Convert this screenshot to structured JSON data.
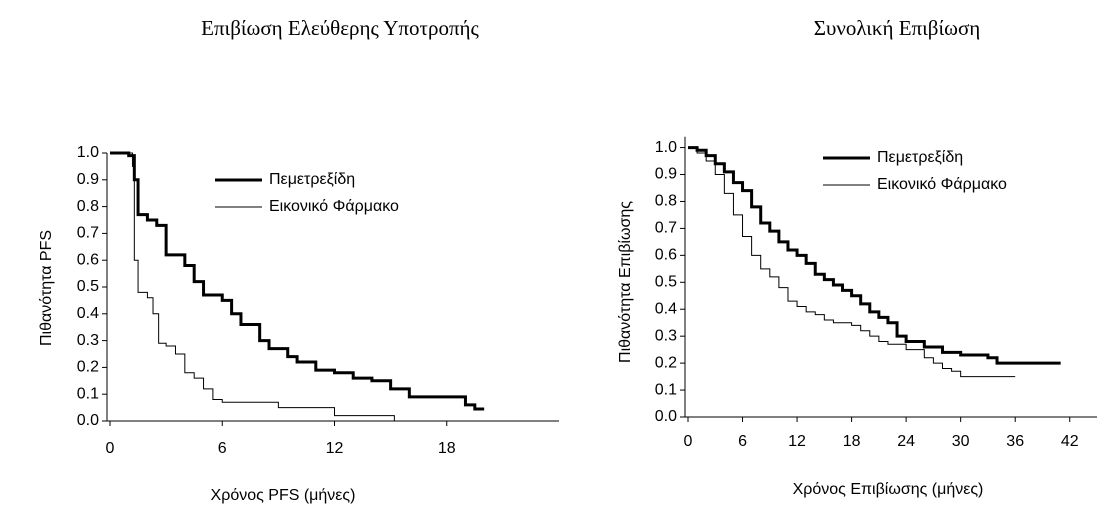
{
  "chart_data": [
    {
      "type": "step",
      "title": "Επιβίωση Ελεύθερης Υποτροπής",
      "x_label": "Χρόνος PFS (μήνες)",
      "y_label": "Πιθανότητα PFS",
      "xlim": [
        0,
        24
      ],
      "xticks": [
        0,
        6,
        12,
        18
      ],
      "ylim": [
        0,
        1
      ],
      "yticks": [
        {
          "value": 0,
          "label": "0.0"
        },
        0.1,
        0.2,
        0.3,
        0.4,
        0.5,
        0.6,
        0.7,
        0.8,
        0.9,
        {
          "value": 1,
          "label": "1.0"
        }
      ],
      "legend": "upper right",
      "series": [
        {
          "name": "Πεμετρεξίδη",
          "color": "#000000",
          "line_width": 3,
          "x": [
            0,
            1,
            1.3,
            1.5,
            2,
            2.5,
            3,
            4,
            4.5,
            5,
            6,
            6.5,
            7,
            8,
            8.5,
            9.5,
            10,
            11,
            12,
            13,
            14,
            15,
            16,
            18,
            19,
            19.5,
            20
          ],
          "values": [
            1.0,
            0.99,
            0.9,
            0.77,
            0.75,
            0.73,
            0.62,
            0.58,
            0.52,
            0.47,
            0.45,
            0.4,
            0.36,
            0.3,
            0.27,
            0.24,
            0.22,
            0.19,
            0.18,
            0.16,
            0.15,
            0.12,
            0.09,
            0.09,
            0.06,
            0.045,
            0.045
          ]
        },
        {
          "name": "Εικονικό Φάρμακο",
          "color": "#000000",
          "line_width": 1,
          "x": [
            0,
            1.2,
            1.3,
            1.5,
            2,
            2.3,
            2.6,
            3,
            3.5,
            4,
            4.5,
            5,
            5.5,
            6,
            7,
            9,
            11,
            12,
            15,
            15.2
          ],
          "values": [
            1.0,
            0.95,
            0.6,
            0.48,
            0.46,
            0.4,
            0.29,
            0.28,
            0.25,
            0.18,
            0.16,
            0.12,
            0.08,
            0.07,
            0.07,
            0.05,
            0.05,
            0.02,
            0.02,
            0
          ]
        }
      ]
    },
    {
      "type": "step",
      "title": "Συνολική Επιβίωση",
      "x_label": "Χρόνος Επιβίωσης (μήνες)",
      "y_label": "Πιθανότητα Επιβίωσης",
      "xlim": [
        0,
        45
      ],
      "xticks": [
        0,
        6,
        12,
        18,
        24,
        30,
        36,
        42
      ],
      "ylim": [
        0,
        1.04
      ],
      "yticks": [
        {
          "value": 0,
          "label": "0.0"
        },
        0.1,
        0.2,
        0.3,
        0.4,
        0.5,
        0.6,
        0.7,
        0.8,
        0.9,
        {
          "value": 1,
          "label": "1.0"
        }
      ],
      "legend": "upper right",
      "series": [
        {
          "name": "Πεμετρεξίδη",
          "color": "#000000",
          "line_width": 3,
          "x": [
            0,
            1,
            2,
            3,
            4,
            5,
            6,
            7,
            8,
            9,
            10,
            11,
            12,
            13,
            14,
            15,
            16,
            17,
            18,
            19,
            20,
            21,
            22,
            23,
            24,
            26,
            28,
            30,
            32,
            33,
            34,
            36,
            41
          ],
          "values": [
            1.0,
            0.99,
            0.97,
            0.94,
            0.91,
            0.87,
            0.84,
            0.78,
            0.72,
            0.69,
            0.65,
            0.62,
            0.6,
            0.57,
            0.53,
            0.51,
            0.49,
            0.47,
            0.45,
            0.42,
            0.39,
            0.37,
            0.35,
            0.3,
            0.28,
            0.26,
            0.24,
            0.23,
            0.23,
            0.22,
            0.2,
            0.2,
            0.2
          ]
        },
        {
          "name": "Εικονικό Φάρμακο",
          "color": "#000000",
          "line_width": 1,
          "x": [
            0,
            1,
            2,
            3,
            4,
            5,
            6,
            7,
            8,
            9,
            10,
            11,
            12,
            13,
            14,
            15,
            16,
            18,
            19,
            20,
            21,
            22,
            24,
            26,
            27,
            28,
            29,
            30,
            36
          ],
          "values": [
            1.0,
            0.98,
            0.95,
            0.9,
            0.83,
            0.75,
            0.67,
            0.6,
            0.55,
            0.52,
            0.48,
            0.43,
            0.41,
            0.39,
            0.38,
            0.36,
            0.35,
            0.34,
            0.32,
            0.3,
            0.28,
            0.27,
            0.25,
            0.22,
            0.2,
            0.18,
            0.17,
            0.15,
            0.15
          ]
        }
      ]
    }
  ]
}
